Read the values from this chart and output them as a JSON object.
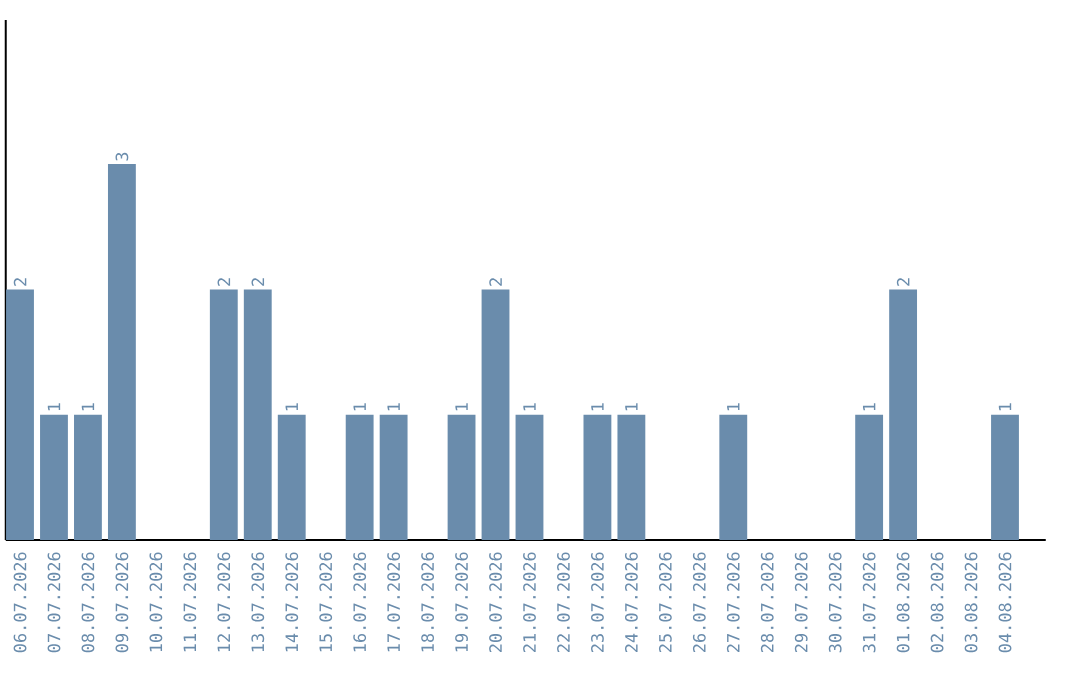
{
  "chart_data": {
    "type": "bar",
    "categories": [
      "06.07.2026",
      "07.07.2026",
      "08.07.2026",
      "09.07.2026",
      "10.07.2026",
      "11.07.2026",
      "12.07.2026",
      "13.07.2026",
      "14.07.2026",
      "15.07.2026",
      "16.07.2026",
      "17.07.2026",
      "18.07.2026",
      "19.07.2026",
      "20.07.2026",
      "21.07.2026",
      "22.07.2026",
      "23.07.2026",
      "24.07.2026",
      "25.07.2026",
      "26.07.2026",
      "27.07.2026",
      "28.07.2026",
      "29.07.2026",
      "30.07.2026",
      "31.07.2026",
      "01.08.2026",
      "02.08.2026",
      "03.08.2026",
      "04.08.2026"
    ],
    "values": [
      2,
      1,
      1,
      3,
      0,
      0,
      2,
      2,
      1,
      0,
      1,
      1,
      0,
      1,
      2,
      1,
      0,
      1,
      1,
      0,
      0,
      1,
      0,
      0,
      0,
      1,
      2,
      0,
      0,
      1
    ],
    "value_labels": [
      "2",
      "1",
      "1",
      "3",
      null,
      null,
      "2",
      "2",
      "1",
      null,
      "1",
      "1",
      null,
      "1",
      "2",
      "1",
      null,
      "1",
      "1",
      null,
      null,
      "1",
      null,
      null,
      null,
      "1",
      "2",
      null,
      null,
      "1"
    ],
    "color": "#6a8cac",
    "ylim": [
      0,
      4.15
    ],
    "tick_labels": "x"
  }
}
